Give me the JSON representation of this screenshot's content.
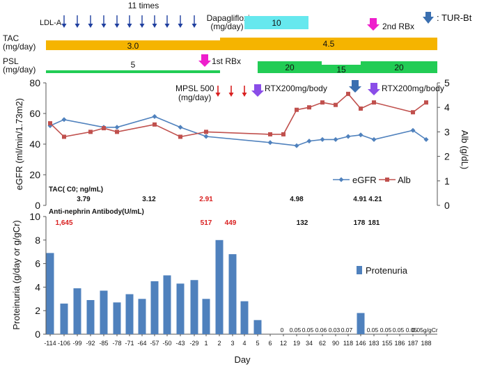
{
  "colors": {
    "egfr": "#4f81bd",
    "alb": "#c0504d",
    "bar": "#4f81bd",
    "tac": "#f5b400",
    "psl": "#22cc55",
    "dapa": "#66e8ee",
    "pink": "#ee1fcc",
    "purple": "#8a4de8",
    "tur": "#3a6fb0",
    "red": "#d92020"
  },
  "timeline": {
    "ldl_label": "LDL-A",
    "ldl_times": "11 times",
    "dapa_label": "Dapagliflozin",
    "dapa_unit": "(mg/day)",
    "dapa_value": "10",
    "tac_label": "TAC",
    "tac_unit": "(mg/day)",
    "tac_value1": "3.0",
    "tac_value2": "4.5",
    "psl_label": "PSL",
    "psl_unit": "(mg/day)",
    "psl_value1": "5",
    "psl_value2": "20",
    "psl_value3": "15",
    "psl_value4": "20",
    "rbx1": "1st RBx",
    "rbx2": "2nd RBx",
    "tur_label": ": TUR-Bt",
    "mpsl_label": "MPSL 500",
    "mpsl_unit": "(mg/day)",
    "rtx1": "RTX200mg/body",
    "rtx2": "RTX200mg/body"
  },
  "tac_c0": {
    "label": "TAC( C0; ng/mL)",
    "values": [
      "3.79",
      "3.12",
      "2.91",
      "4.98",
      "4.91",
      "4.21"
    ]
  },
  "antinephrin": {
    "label": "Anti-nephrin Antibody(U/mL)",
    "values": [
      "1,645",
      "517",
      "449",
      "132",
      "178",
      "181"
    ]
  },
  "chart_data": [
    {
      "type": "line",
      "title": "",
      "xlabel": "",
      "ylabel": "eGFR (ml/min/1.73m2)",
      "y2label": "Alb (g/dL)",
      "ylim": [
        0,
        80
      ],
      "yticks": [
        "0",
        "20",
        "40",
        "60",
        "80"
      ],
      "y2lim": [
        0,
        5
      ],
      "y2ticks": [
        "0",
        "1",
        "2",
        "3",
        "4",
        "5"
      ],
      "series": [
        {
          "name": "eGFR",
          "axis": "left",
          "points": [
            [
              -114,
              52
            ],
            [
              -106,
              56
            ],
            [
              -85,
              51
            ],
            [
              -78,
              51
            ],
            [
              -57,
              58
            ],
            [
              -43,
              51
            ],
            [
              1,
              45
            ],
            [
              6,
              41
            ],
            [
              19,
              39
            ],
            [
              34,
              42
            ],
            [
              62,
              43
            ],
            [
              90,
              43
            ],
            [
              118,
              45
            ],
            [
              146,
              46
            ],
            [
              183,
              43
            ],
            [
              187,
              49
            ],
            [
              188,
              43
            ]
          ]
        },
        {
          "name": "Alb",
          "axis": "right",
          "points": [
            [
              -114,
              3.35
            ],
            [
              -106,
              2.8
            ],
            [
              -92,
              3.0
            ],
            [
              -85,
              3.15
            ],
            [
              -78,
              3.0
            ],
            [
              -57,
              3.3
            ],
            [
              -43,
              2.8
            ],
            [
              1,
              3.0
            ],
            [
              6,
              2.9
            ],
            [
              12,
              2.9
            ],
            [
              19,
              3.9
            ],
            [
              34,
              4.0
            ],
            [
              62,
              4.2
            ],
            [
              90,
              4.1
            ],
            [
              118,
              4.55
            ],
            [
              146,
              3.95
            ],
            [
              183,
              4.2
            ],
            [
              187,
              3.8
            ],
            [
              188,
              4.2
            ]
          ]
        }
      ],
      "legend": [
        "eGFR",
        "Alb"
      ]
    },
    {
      "type": "bar",
      "title": "",
      "xlabel": "Day",
      "ylabel": "Proteinuria (g/day or g/gCr)",
      "ylim": [
        0,
        10
      ],
      "yticks": [
        "0",
        "2",
        "4",
        "6",
        "8",
        "10"
      ],
      "categories": [
        "-114",
        "-106",
        "-99",
        "-92",
        "-85",
        "-78",
        "-71",
        "-64",
        "-57",
        "-50",
        "-43",
        "-29",
        "1",
        "2",
        "3",
        "4",
        "5",
        "6",
        "12",
        "19",
        "34",
        "62",
        "90",
        "118",
        "146",
        "183",
        "155",
        "186",
        "187",
        "188"
      ],
      "values": [
        6.9,
        2.6,
        3.9,
        2.9,
        3.7,
        2.7,
        3.4,
        3.0,
        4.5,
        5.0,
        4.3,
        4.6,
        3.0,
        8.0,
        6.8,
        2.8,
        1.2,
        0,
        0,
        0.05,
        0.05,
        0.06,
        0.03,
        0.07,
        1.8,
        0.05,
        0.05,
        0.05,
        0.05,
        0.05
      ],
      "value_labels": [
        "",
        "",
        "",
        "",
        "",
        "",
        "",
        "",
        "",
        "",
        "",
        "",
        "",
        "",
        "",
        "",
        "",
        "",
        "0",
        "0.05",
        "0.05",
        "0.06",
        "0.03",
        "0.07",
        "",
        "0.05",
        "0.05",
        "0.05",
        "0.05",
        "0.05g/gCr"
      ],
      "legend": [
        "Protenuria"
      ]
    }
  ]
}
